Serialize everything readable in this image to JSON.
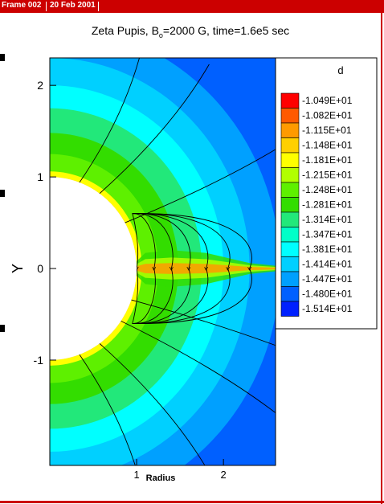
{
  "frame": {
    "tab_label": "Frame 002",
    "date_label": "20 Feb 2001",
    "colors": {
      "bar": "#cc0000",
      "text": "#ffffff"
    }
  },
  "chart_data": {
    "type": "heatmap",
    "title_prefix": "Zeta Pupis, B",
    "title_subscript": "o",
    "title_suffix": "=2000 G, time=1.6e5 sec",
    "xlabel": "Radius",
    "ylabel": "Y",
    "xlim": [
      0,
      2.6
    ],
    "ylim": [
      -2.15,
      2.3
    ],
    "x_ticks": [
      1,
      2
    ],
    "y_ticks": [
      2,
      1,
      0,
      -1
    ],
    "star_radius": 1.0,
    "legend_title": "d",
    "legend_placement": "right",
    "contour_levels": [
      "-1.049E+01",
      "-1.082E+01",
      "-1.115E+01",
      "-1.148E+01",
      "-1.181E+01",
      "-1.215E+01",
      "-1.248E+01",
      "-1.281E+01",
      "-1.314E+01",
      "-1.347E+01",
      "-1.381E+01",
      "-1.414E+01",
      "-1.447E+01",
      "-1.480E+01",
      "-1.514E+01"
    ],
    "level_colors": [
      "#ff0000",
      "#ff5a00",
      "#ff9a00",
      "#ffd000",
      "#ffff00",
      "#b2ff00",
      "#5ef000",
      "#33dd00",
      "#22e87a",
      "#00ffc8",
      "#00ffff",
      "#00d0ff",
      "#00a0ff",
      "#0060ff",
      "#0020ff"
    ],
    "density_bands": {
      "radii": [
        1.0,
        1.06,
        1.25,
        1.48,
        1.75,
        2.0,
        2.3,
        2.65
      ],
      "level_index": [
        2,
        4,
        6,
        7,
        8,
        10,
        11,
        12
      ],
      "background_level": 13
    },
    "disk": {
      "x": [
        1.0,
        1.1,
        1.4,
        1.8,
        2.3,
        2.6
      ],
      "half_width": [
        0.08,
        0.17,
        0.2,
        0.17,
        0.06,
        0.03
      ],
      "core_level_index": [
        1,
        3,
        4,
        5,
        7,
        9
      ]
    },
    "field_lines": {
      "closed_loop_apex": [
        1.0,
        1.2,
        1.4,
        1.6,
        1.8,
        2.05,
        2.3
      ],
      "open_footpoint_angles_deg": [
        20,
        35,
        60,
        110,
        125,
        145,
        160
      ],
      "arrows": "outward in upper hemisphere, inward in lower hemisphere"
    }
  }
}
